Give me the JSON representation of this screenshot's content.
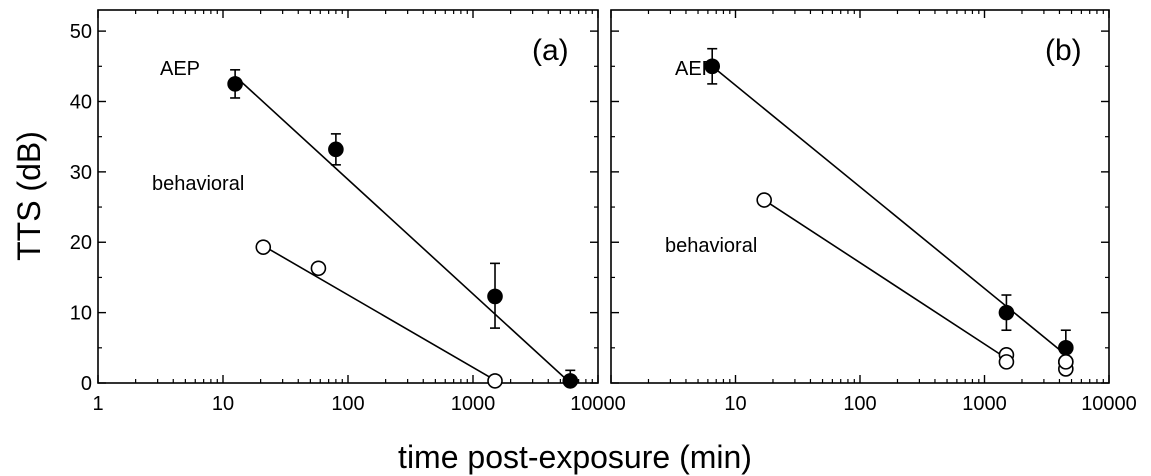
{
  "shared": {
    "xlabel": "time post-exposure (min)",
    "ylabel": "TTS (dB)",
    "x_ticks": [
      "1",
      "10",
      "100",
      "1000",
      "10000"
    ],
    "y_ticks": [
      "0",
      "10",
      "20",
      "30",
      "40",
      "50"
    ]
  },
  "chart_data": [
    {
      "type": "scatter",
      "panel_label": "(a)",
      "xlabel": "time post-exposure (min)",
      "ylabel": "TTS (dB)",
      "xscale": "log",
      "xlim": [
        1,
        10000
      ],
      "ylim": [
        0,
        53
      ],
      "grid": false,
      "series": [
        {
          "label": "AEP",
          "marker": "filled-circle",
          "x": [
            12.5,
            80,
            1500,
            6000
          ],
          "y": [
            42.5,
            33.2,
            12.3,
            0.3
          ],
          "err_low": [
            2.0,
            2.2,
            4.5,
            0.5
          ],
          "err_high": [
            2.0,
            2.2,
            4.7,
            1.5
          ],
          "fit": {
            "x": [
              12.5,
              6000
            ],
            "y": [
              43.6,
              0.0
            ]
          }
        },
        {
          "label": "behavioral",
          "marker": "open-circle",
          "x": [
            21,
            58,
            1500
          ],
          "y": [
            19.3,
            16.3,
            0.3
          ],
          "fit": {
            "x": [
              21,
              1500
            ],
            "y": [
              19.5,
              0.4
            ]
          }
        }
      ]
    },
    {
      "type": "scatter",
      "panel_label": "(b)",
      "xlabel": "time post-exposure (min)",
      "ylabel": "TTS (dB)",
      "xscale": "log",
      "xlim": [
        1,
        10000
      ],
      "ylim": [
        0,
        53
      ],
      "grid": false,
      "series": [
        {
          "label": "AEP",
          "marker": "filled-circle",
          "x": [
            6.5,
            1500,
            4500
          ],
          "y": [
            45.0,
            10.0,
            5.0
          ],
          "err_low": [
            2.5,
            2.5,
            2.5
          ],
          "err_high": [
            2.5,
            2.5,
            2.5
          ],
          "fit": {
            "x": [
              6.5,
              4500
            ],
            "y": [
              45.0,
              4.0
            ]
          }
        },
        {
          "label": "behavioral",
          "marker": "open-circle",
          "x": [
            17,
            1500,
            1500,
            4500,
            4500,
            4500
          ],
          "y": [
            26.0,
            4.0,
            3.0,
            3.0,
            2.0,
            3.0
          ],
          "fit": {
            "x": [
              17,
              1500
            ],
            "y": [
              26.0,
              3.5
            ]
          }
        }
      ]
    }
  ]
}
